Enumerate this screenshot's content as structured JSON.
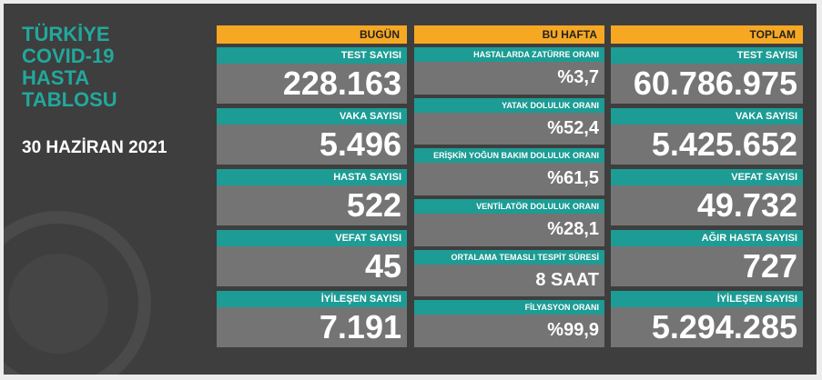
{
  "header": {
    "title": [
      "TÜRKİYE",
      "COVID-19",
      "HASTA",
      "TABLOSU"
    ],
    "date": "30 HAZİRAN 2021"
  },
  "columns": [
    {
      "header": "BUGÜN",
      "cells": [
        {
          "label": "TEST SAYISI",
          "value": "228.163"
        },
        {
          "label": "VAKA SAYISI",
          "value": "5.496"
        },
        {
          "label": "HASTA SAYISI",
          "value": "522"
        },
        {
          "label": "VEFAT SAYISI",
          "value": "45"
        },
        {
          "label": "İYİLEŞEN SAYISI",
          "value": "7.191"
        }
      ]
    },
    {
      "header": "BU HAFTA",
      "cells": [
        {
          "label": "HASTALARDA ZATÜRRE ORANI",
          "value": "%3,7"
        },
        {
          "label": "YATAK DOLULUK ORANI",
          "value": "%52,4"
        },
        {
          "label": "ERİŞKİN YOĞUN BAKIM DOLULUK ORANI",
          "value": "%61,5"
        },
        {
          "label": "VENTİLATÖR DOLULUK ORANI",
          "value": "%28,1"
        },
        {
          "label": "ORTALAMA TEMASLI TESPİT SÜRESİ",
          "value": "8 SAAT"
        },
        {
          "label": "FİLYASYON ORANI",
          "value": "%99,9"
        }
      ]
    },
    {
      "header": "TOPLAM",
      "cells": [
        {
          "label": "TEST SAYISI",
          "value": "60.786.975"
        },
        {
          "label": "VAKA SAYISI",
          "value": "5.425.652"
        },
        {
          "label": "VEFAT SAYISI",
          "value": "49.732"
        },
        {
          "label": "AĞIR HASTA SAYISI",
          "value": "727"
        },
        {
          "label": "İYİLEŞEN SAYISI",
          "value": "5.294.285"
        }
      ]
    }
  ]
}
